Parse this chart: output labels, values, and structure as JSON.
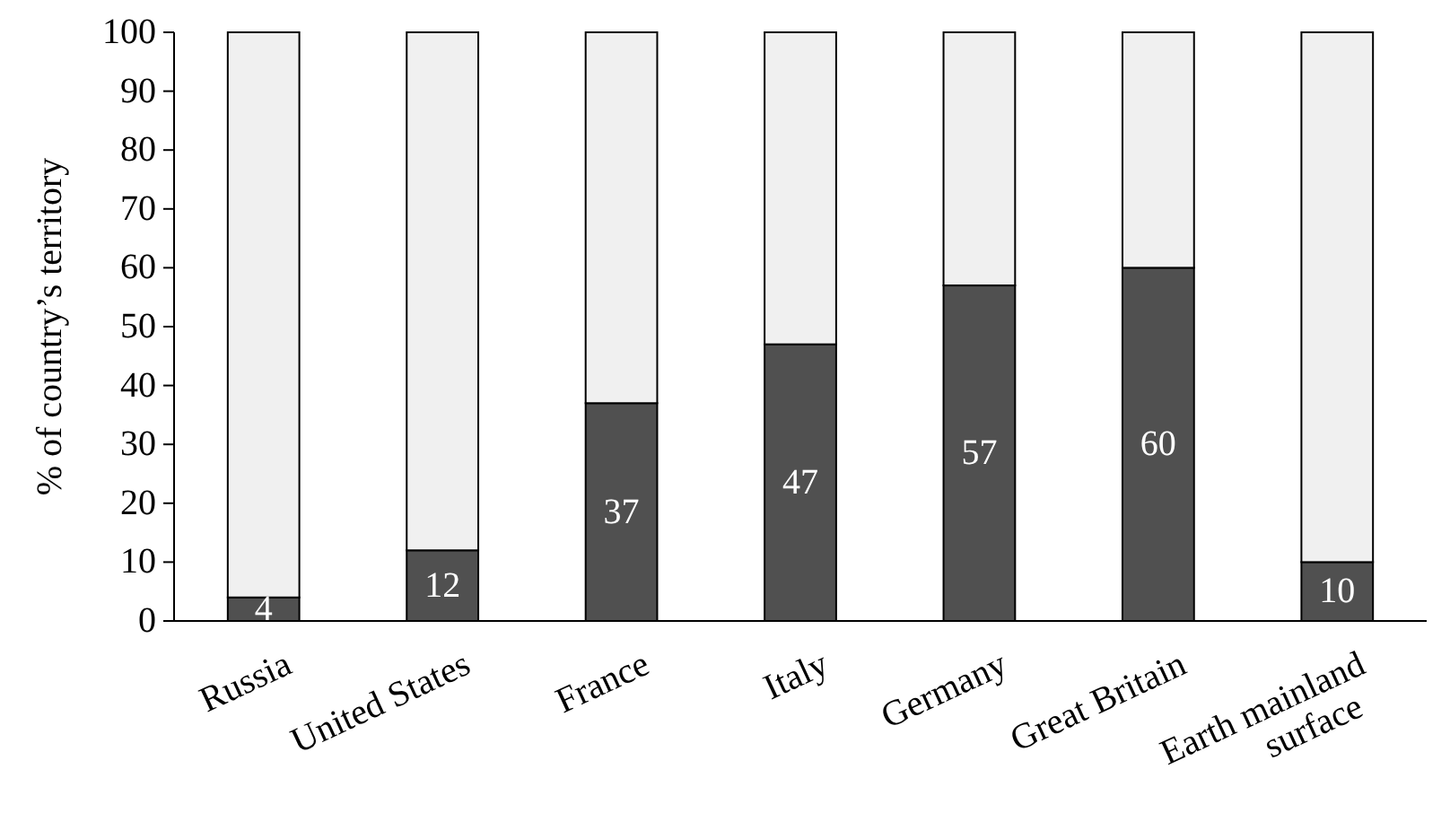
{
  "chart_data": {
    "type": "bar",
    "stacked": true,
    "ylabel": "% of country’s territory",
    "categories": [
      "Russia",
      "United States",
      "France",
      "Italy",
      "Germany",
      "Great Britain",
      "Earth mainland surface"
    ],
    "series": [
      {
        "color": "#505050",
        "values": [
          4,
          12,
          37,
          47,
          57,
          60,
          10
        ],
        "value_labels": [
          "4",
          "12",
          "37",
          "47",
          "57",
          "60",
          "10"
        ]
      },
      {
        "color": "#f0f0f0",
        "values": [
          96,
          88,
          63,
          53,
          43,
          40,
          90
        ]
      }
    ],
    "ylim": [
      0,
      100
    ],
    "yticks": [
      0,
      10,
      20,
      30,
      40,
      50,
      60,
      70,
      80,
      90,
      100
    ],
    "grid": false
  }
}
